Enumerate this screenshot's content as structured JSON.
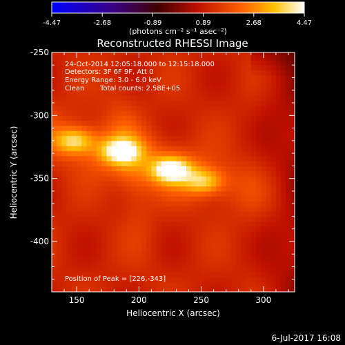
{
  "chart_data": {
    "type": "heatmap",
    "title": "Reconstructed RHESSI Image",
    "xlabel": "Heliocentric X (arcsec)",
    "ylabel": "Heliocentric Y (arcsec)",
    "xlim": [
      130,
      325
    ],
    "ylim": [
      -440,
      -250
    ],
    "x_ticks": [
      150,
      200,
      250,
      300
    ],
    "y_ticks": [
      -400,
      -350,
      -300,
      -250
    ],
    "colorbar": {
      "range": [
        -4.47,
        4.47
      ],
      "ticks": [
        "-4.47",
        "-2.68",
        "-0.89",
        "0.89",
        "2.68",
        "4.47"
      ],
      "label": "(photons cm⁻² s⁻¹ asec⁻²)"
    },
    "annotations": {
      "time": "24-Oct-2014 12:05:18.000 to 12:15:18.000",
      "detectors": "Detectors: 3F 6F 9F, Att 0",
      "energy": "Energy Range: 3.0 - 6.0 keV",
      "method": "Clean",
      "counts": "Total counts: 2.58E+05",
      "peak": "Position of Peak = [226,-343]"
    },
    "sources": [
      {
        "x": 148,
        "y": -320,
        "value": 3.6
      },
      {
        "x": 185,
        "y": -328,
        "value": 4.0
      },
      {
        "x": 226,
        "y": -343,
        "value": 4.47
      },
      {
        "x": 252,
        "y": -352,
        "value": 3.4
      }
    ],
    "grid": false,
    "legend": "none"
  },
  "footer": {
    "date": "6-Jul-2017 16:08"
  }
}
